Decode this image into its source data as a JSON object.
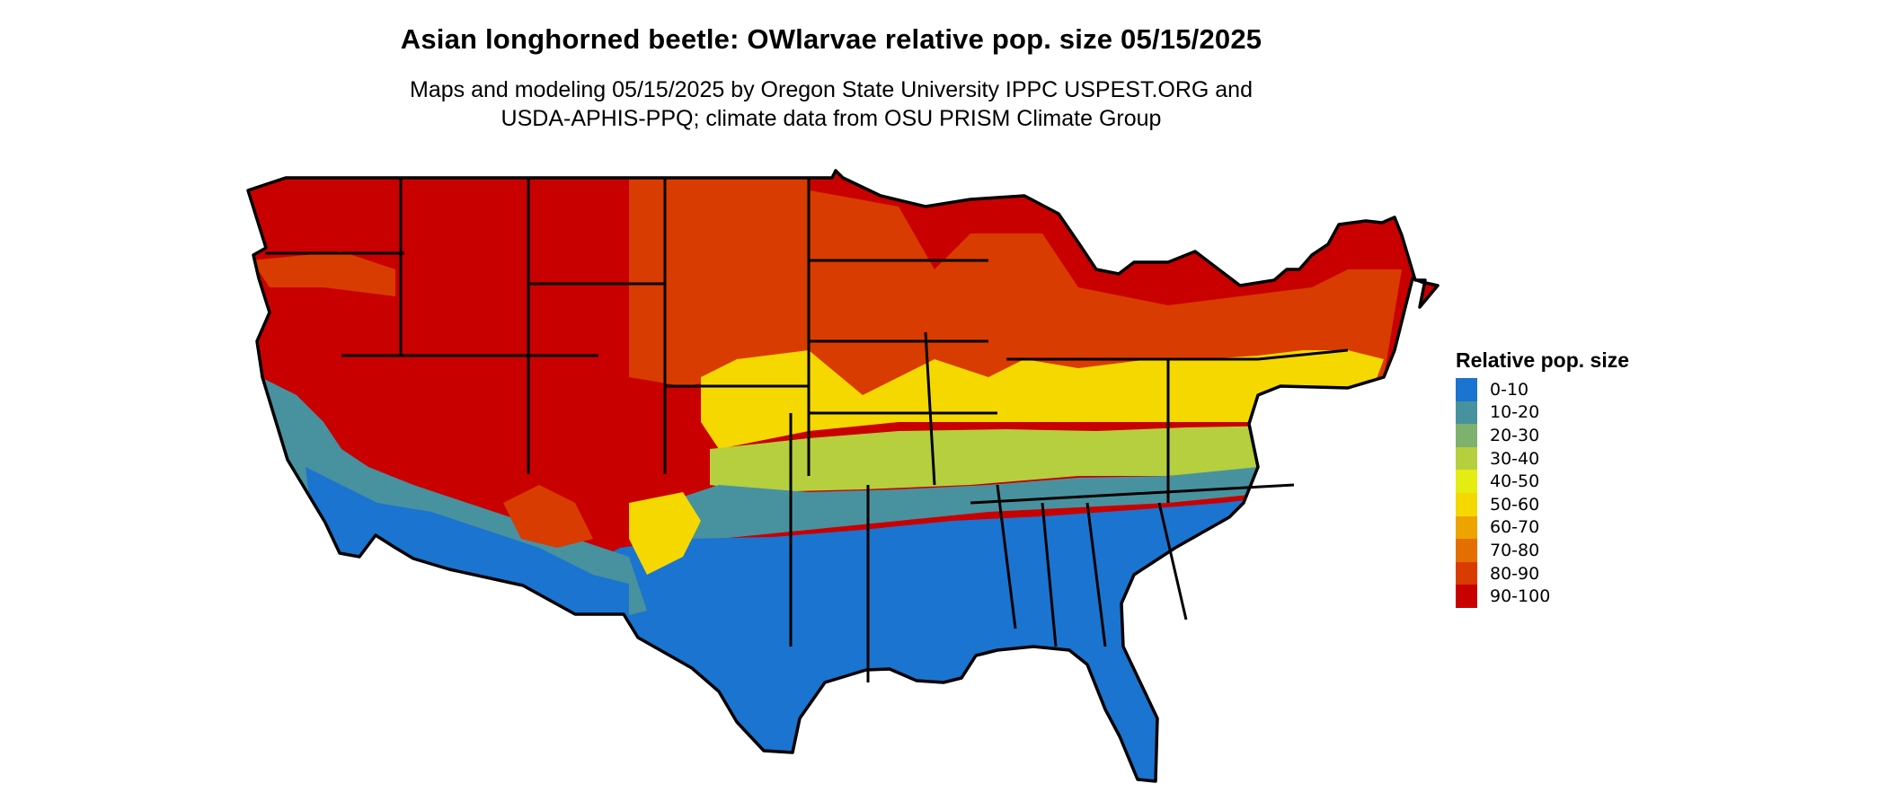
{
  "title": "Asian longhorned beetle: OWlarvae relative pop. size 05/15/2025",
  "subtitle": {
    "line1": "Maps and modeling 05/15/2025 by Oregon State University IPPC USPEST.ORG and",
    "line2": "USDA-APHIS-PPQ; climate data from OSU PRISM Climate Group"
  },
  "legend": {
    "title": "Relative pop. size",
    "items": [
      {
        "label": "0-10",
        "color": "#1b74cf"
      },
      {
        "label": "10-20",
        "color": "#48929f"
      },
      {
        "label": "20-30",
        "color": "#7eb06e"
      },
      {
        "label": "30-40",
        "color": "#b5cf3e"
      },
      {
        "label": "40-50",
        "color": "#e4ec12"
      },
      {
        "label": "50-60",
        "color": "#f5d800"
      },
      {
        "label": "60-70",
        "color": "#eea400"
      },
      {
        "label": "70-80",
        "color": "#e46e00"
      },
      {
        "label": "80-90",
        "color": "#d93c00"
      },
      {
        "label": "90-100",
        "color": "#c90000"
      }
    ]
  },
  "map": {
    "region": "Contiguous United States",
    "outline_color": "#000000"
  }
}
